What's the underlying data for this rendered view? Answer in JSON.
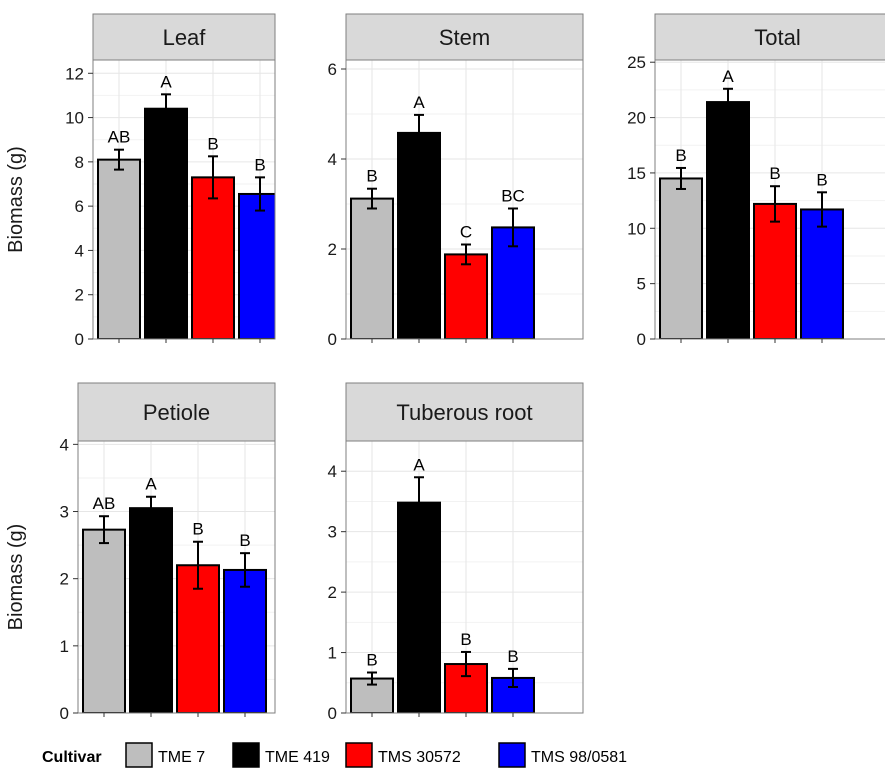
{
  "chart_data": {
    "type": "bar",
    "facet": true,
    "series_names": [
      "TME 7",
      "TME 419",
      "TMS 30572",
      "TMS 98/0581"
    ],
    "colors": {
      "TME 7": "#bebebe",
      "TME 419": "#000000",
      "TMS 30572": "#ff0000",
      "TMS 98/0581": "#0000ff"
    },
    "grid": true,
    "legend": {
      "title": "Cultivar",
      "position": "bottom",
      "labels": [
        "TME 7",
        "TME 419",
        "TMS 30572",
        "TMS 98/0581"
      ]
    },
    "panels": [
      {
        "title": "Leaf",
        "ylabel": "Biomass (g)",
        "ylim": [
          0,
          12.6
        ],
        "yticks": [
          "0",
          "2",
          "4",
          "6",
          "8",
          "10",
          "12"
        ],
        "values": [
          8.1,
          10.4,
          7.3,
          6.55
        ],
        "errors": [
          0.45,
          0.65,
          0.95,
          0.75
        ],
        "letters": [
          "AB",
          "A",
          "B",
          "B"
        ]
      },
      {
        "title": "Stem",
        "ylabel": "",
        "ylim": [
          0,
          6.2
        ],
        "yticks": [
          "0",
          "2",
          "4",
          "6"
        ],
        "values": [
          3.12,
          4.58,
          1.88,
          2.48
        ],
        "errors": [
          0.22,
          0.4,
          0.22,
          0.42
        ],
        "letters": [
          "B",
          "A",
          "C",
          "BC"
        ]
      },
      {
        "title": "Total",
        "ylabel": "",
        "ylim": [
          0,
          25.2
        ],
        "yticks": [
          "0",
          "5",
          "10",
          "15",
          "20",
          "25"
        ],
        "values": [
          14.5,
          21.4,
          12.2,
          11.7
        ],
        "errors": [
          0.95,
          1.2,
          1.6,
          1.55
        ],
        "letters": [
          "B",
          "A",
          "B",
          "B"
        ]
      },
      {
        "title": "Petiole",
        "ylabel": "Biomass (g)",
        "ylim": [
          0,
          4.05
        ],
        "yticks": [
          "0",
          "1",
          "2",
          "3",
          "4"
        ],
        "values": [
          2.73,
          3.05,
          2.2,
          2.13
        ],
        "errors": [
          0.2,
          0.17,
          0.35,
          0.25
        ],
        "letters": [
          "AB",
          "A",
          "B",
          "B"
        ]
      },
      {
        "title": "Tuberous root",
        "ylabel": "",
        "ylim": [
          0,
          4.5
        ],
        "yticks": [
          "0",
          "1",
          "2",
          "3",
          "4"
        ],
        "values": [
          0.57,
          3.48,
          0.81,
          0.58
        ],
        "errors": [
          0.1,
          0.42,
          0.2,
          0.15
        ],
        "letters": [
          "B",
          "A",
          "B",
          "B"
        ]
      }
    ]
  }
}
